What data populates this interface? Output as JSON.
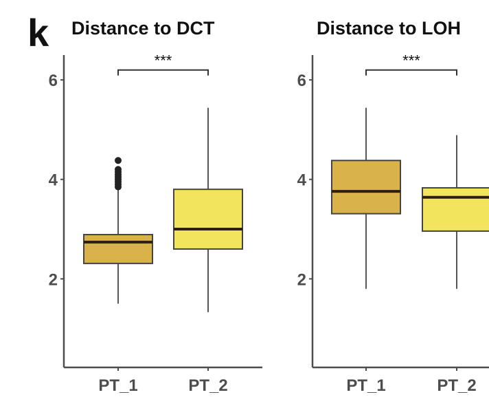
{
  "figure": {
    "panel_letter": "k"
  },
  "chart_data": [
    {
      "type": "box",
      "title": "Distance to DCT",
      "xlabel": "",
      "ylabel": "",
      "ylim": [
        0.22,
        6.5
      ],
      "yticks": [
        2,
        4,
        6
      ],
      "ytick_labels": [
        "2",
        "4",
        "6"
      ],
      "grid": false,
      "categories": [
        "PT_1",
        "PT_2"
      ],
      "colors": [
        "#d9b24a",
        "#f2e45c"
      ],
      "boxes": [
        {
          "category": "PT_1",
          "whisker_low": 1.5,
          "q1": 2.31,
          "median": 2.74,
          "q3": 2.89,
          "whisker_high": 3.8,
          "outliers": [
            3.85,
            3.9,
            3.95,
            4.0,
            4.05,
            4.1,
            4.15,
            4.2,
            4.38
          ]
        },
        {
          "category": "PT_2",
          "whisker_low": 1.33,
          "q1": 2.6,
          "median": 3.0,
          "q3": 3.8,
          "whisker_high": 5.44,
          "outliers": []
        }
      ],
      "significance": {
        "pair": [
          "PT_1",
          "PT_2"
        ],
        "label": "***",
        "y": 6.2
      }
    },
    {
      "type": "box",
      "title": "Distance to LOH",
      "xlabel": "",
      "ylabel": "",
      "ylim": [
        0.22,
        6.5
      ],
      "yticks": [
        2,
        4,
        6
      ],
      "ytick_labels": [
        "2",
        "4",
        "6"
      ],
      "grid": false,
      "categories": [
        "PT_1",
        "PT_2"
      ],
      "colors": [
        "#d9b24a",
        "#f2e45c"
      ],
      "boxes": [
        {
          "category": "PT_1",
          "whisker_low": 1.8,
          "q1": 3.31,
          "median": 3.76,
          "q3": 4.38,
          "whisker_high": 5.44,
          "outliers": []
        },
        {
          "category": "PT_2",
          "whisker_low": 1.8,
          "q1": 2.96,
          "median": 3.64,
          "q3": 3.83,
          "whisker_high": 4.89,
          "outliers": []
        }
      ],
      "significance": {
        "pair": [
          "PT_1",
          "PT_2"
        ],
        "label": "***",
        "y": 6.2
      }
    }
  ]
}
